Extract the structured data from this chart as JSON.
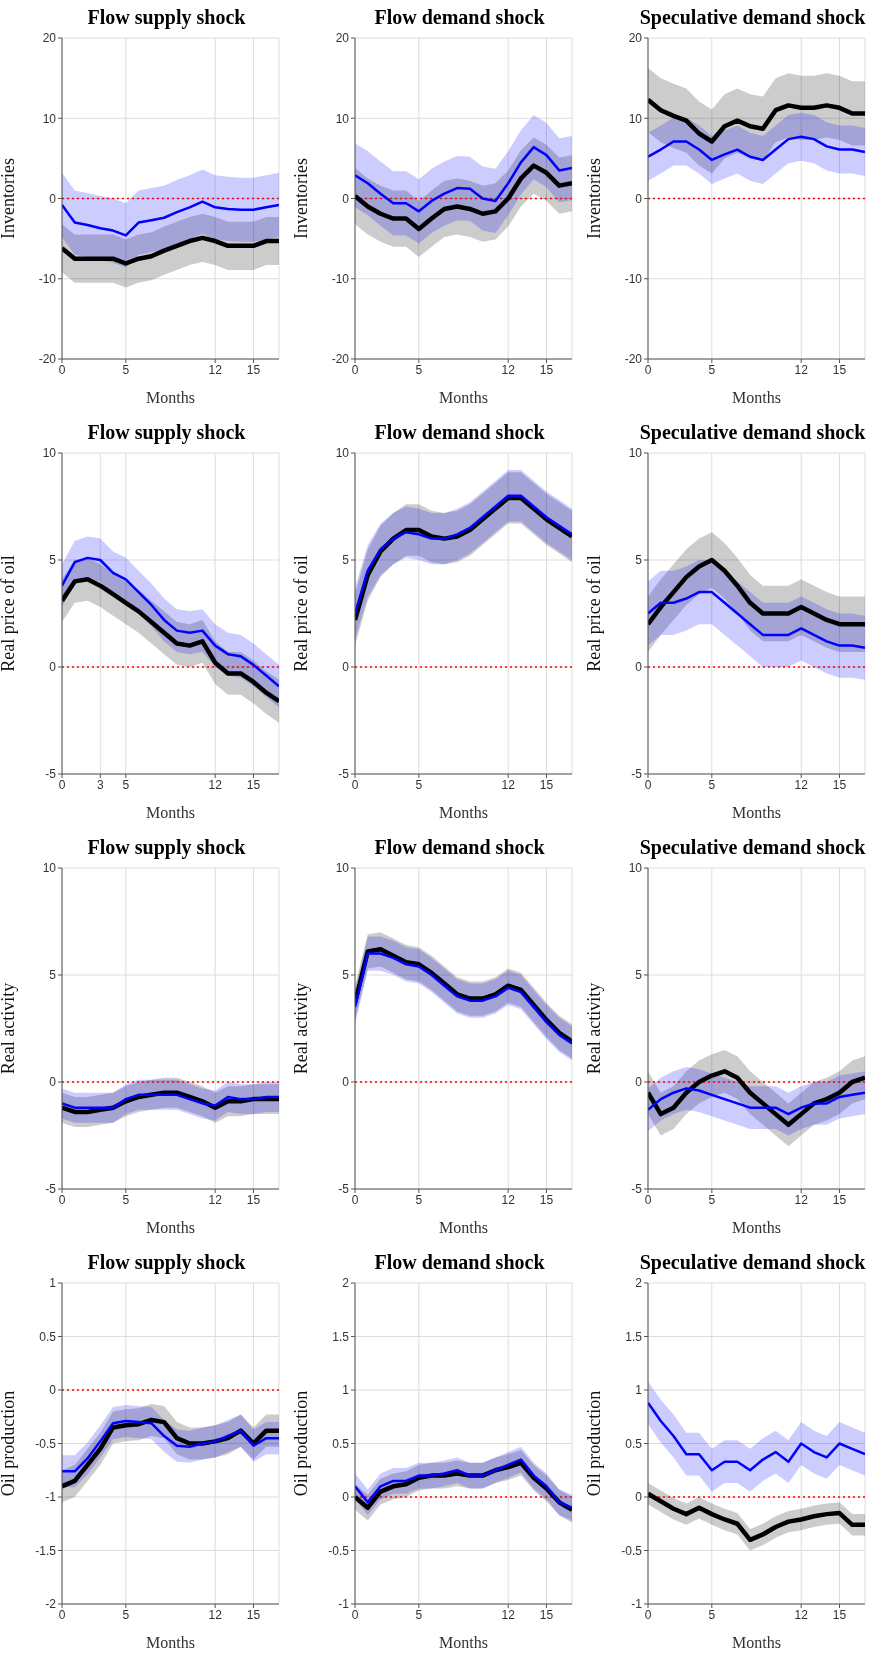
{
  "chart_data": [
    {
      "type": "line",
      "title": "Flow supply shock",
      "xlabel": "Months",
      "ylabel": "Oil production",
      "x": [
        0,
        1,
        2,
        3,
        4,
        5,
        6,
        7,
        8,
        9,
        10,
        11,
        12,
        13,
        14,
        15,
        16,
        17
      ],
      "xlim": [
        0,
        17
      ],
      "xticks": [
        0,
        5,
        12,
        15
      ],
      "ylim": [
        -2,
        1
      ],
      "yticks": [
        -2,
        -1.5,
        -1,
        -0.5,
        0,
        0.5,
        1
      ],
      "grid": true,
      "ref_lines": [
        {
          "axis": "y",
          "value": 0,
          "color": "#ff0000",
          "line_style": "dotted"
        }
      ],
      "series": [
        {
          "color": "#000000",
          "values": [
            -0.9,
            -0.85,
            -0.7,
            -0.55,
            -0.35,
            -0.33,
            -0.32,
            -0.28,
            -0.3,
            -0.45,
            -0.5,
            -0.5,
            -0.48,
            -0.45,
            -0.38,
            -0.5,
            -0.38,
            -0.38
          ],
          "lower": [
            -1.05,
            -1,
            -0.85,
            -0.7,
            -0.5,
            -0.48,
            -0.47,
            -0.43,
            -0.45,
            -0.6,
            -0.65,
            -0.65,
            -0.63,
            -0.6,
            -0.53,
            -0.65,
            -0.53,
            -0.53
          ],
          "upper": [
            -0.75,
            -0.7,
            -0.55,
            -0.4,
            -0.2,
            -0.18,
            -0.17,
            -0.13,
            -0.15,
            -0.3,
            -0.35,
            -0.35,
            -0.33,
            -0.3,
            -0.23,
            -0.35,
            -0.23,
            -0.23
          ]
        },
        {
          "color": "#0000ff",
          "values": [
            -0.76,
            -0.76,
            -0.64,
            -0.48,
            -0.31,
            -0.29,
            -0.3,
            -0.31,
            -0.43,
            -0.52,
            -0.53,
            -0.5,
            -0.48,
            -0.43,
            -0.38,
            -0.52,
            -0.45,
            -0.45
          ],
          "lower": [
            -0.91,
            -0.91,
            -0.79,
            -0.63,
            -0.46,
            -0.44,
            -0.45,
            -0.46,
            -0.58,
            -0.67,
            -0.68,
            -0.65,
            -0.63,
            -0.58,
            -0.53,
            -0.67,
            -0.6,
            -0.6
          ],
          "upper": [
            -0.61,
            -0.61,
            -0.49,
            -0.33,
            -0.16,
            -0.14,
            -0.15,
            -0.16,
            -0.28,
            -0.37,
            -0.38,
            -0.35,
            -0.33,
            -0.28,
            -0.23,
            -0.37,
            -0.3,
            -0.3
          ]
        }
      ]
    },
    {
      "type": "line",
      "title": "Flow supply shock",
      "xlabel": "Months",
      "ylabel": "Real activity",
      "x": [
        0,
        1,
        2,
        3,
        4,
        5,
        6,
        7,
        8,
        9,
        10,
        11,
        12,
        13,
        14,
        15,
        16,
        17
      ],
      "xlim": [
        0,
        17
      ],
      "xticks": [
        0,
        5,
        12,
        15
      ],
      "ylim": [
        -5,
        10
      ],
      "yticks": [
        -5,
        0,
        5,
        10
      ],
      "grid": true,
      "ref_lines": [
        {
          "axis": "y",
          "value": 0,
          "color": "#ff0000",
          "line_style": "dotted"
        }
      ],
      "series": [
        {
          "color": "#000000",
          "values": [
            -1.2,
            -1.4,
            -1.4,
            -1.3,
            -1.2,
            -0.9,
            -0.7,
            -0.6,
            -0.5,
            -0.5,
            -0.7,
            -0.9,
            -1.2,
            -0.9,
            -0.9,
            -0.8,
            -0.8,
            -0.8
          ],
          "lower": [
            -1.9,
            -2.1,
            -2.1,
            -2,
            -1.9,
            -1.6,
            -1.4,
            -1.3,
            -1.2,
            -1.2,
            -1.4,
            -1.6,
            -1.9,
            -1.6,
            -1.6,
            -1.5,
            -1.5,
            -1.5
          ],
          "upper": [
            -0.5,
            -0.7,
            -0.7,
            -0.6,
            -0.5,
            -0.2,
            0,
            0.1,
            0.2,
            0.2,
            0,
            -0.2,
            -0.5,
            -0.2,
            -0.2,
            -0.1,
            -0.1,
            -0.1
          ]
        },
        {
          "color": "#0000ff",
          "values": [
            -1,
            -1.2,
            -1.2,
            -1.2,
            -1.2,
            -0.8,
            -0.6,
            -0.6,
            -0.6,
            -0.6,
            -0.8,
            -1,
            -1.1,
            -0.7,
            -0.8,
            -0.8,
            -0.7,
            -0.7
          ],
          "lower": [
            -1.7,
            -1.9,
            -1.9,
            -1.9,
            -1.9,
            -1.5,
            -1.3,
            -1.3,
            -1.3,
            -1.3,
            -1.5,
            -1.7,
            -1.8,
            -1.4,
            -1.5,
            -1.5,
            -1.4,
            -1.4
          ],
          "upper": [
            -0.3,
            -0.5,
            -0.5,
            -0.5,
            -0.5,
            -0.1,
            0.1,
            0.1,
            0.1,
            0.1,
            -0.1,
            -0.3,
            -0.4,
            0,
            -0.1,
            -0.1,
            0,
            0
          ]
        }
      ]
    },
    {
      "type": "line",
      "title": "Flow supply shock",
      "xlabel": "Months",
      "ylabel": "Real price of oil",
      "x": [
        0,
        1,
        2,
        3,
        4,
        5,
        6,
        7,
        8,
        9,
        10,
        11,
        12,
        13,
        14,
        15,
        16,
        17
      ],
      "xlim": [
        0,
        17
      ],
      "xticks": [
        0,
        3,
        5,
        12,
        15
      ],
      "ylim": [
        -5,
        10
      ],
      "yticks": [
        -5,
        0,
        5,
        10
      ],
      "grid": true,
      "ref_lines": [
        {
          "axis": "y",
          "value": 0,
          "color": "#ff0000",
          "line_style": "dotted"
        }
      ],
      "series": [
        {
          "color": "#000000",
          "values": [
            3.1,
            4,
            4.1,
            3.8,
            3.4,
            3,
            2.6,
            2.1,
            1.6,
            1.1,
            1,
            1.2,
            0.2,
            -0.3,
            -0.3,
            -0.7,
            -1.2,
            -1.6
          ],
          "lower": [
            2.1,
            3,
            3.1,
            2.8,
            2.4,
            2,
            1.6,
            1.1,
            0.6,
            0.1,
            0,
            0.2,
            -0.8,
            -1.3,
            -1.3,
            -1.7,
            -2.2,
            -2.6
          ],
          "upper": [
            4.1,
            5,
            5.1,
            4.8,
            4.4,
            4,
            3.6,
            3.1,
            2.6,
            2.1,
            2,
            2.2,
            1.2,
            0.7,
            0.7,
            0.3,
            -0.2,
            -0.6
          ]
        },
        {
          "color": "#0000ff",
          "values": [
            3.8,
            4.9,
            5.1,
            5,
            4.4,
            4.1,
            3.5,
            2.9,
            2.2,
            1.7,
            1.6,
            1.7,
            1,
            0.6,
            0.5,
            0.1,
            -0.4,
            -0.9
          ],
          "lower": [
            2.8,
            3.9,
            4.1,
            4,
            3.4,
            3.1,
            2.5,
            1.9,
            1.2,
            0.7,
            0.6,
            0.7,
            0,
            -0.4,
            -0.5,
            -0.9,
            -1.4,
            -1.9
          ],
          "upper": [
            4.8,
            5.9,
            6.1,
            6,
            5.4,
            5.1,
            4.5,
            3.9,
            3.2,
            2.7,
            2.6,
            2.7,
            2,
            1.6,
            1.5,
            1.1,
            0.6,
            0.1
          ]
        }
      ]
    },
    {
      "type": "line",
      "title": "Flow supply shock",
      "xlabel": "Months",
      "ylabel": "Inventories",
      "x": [
        0,
        1,
        2,
        3,
        4,
        5,
        6,
        7,
        8,
        9,
        10,
        11,
        12,
        13,
        14,
        15,
        16,
        17
      ],
      "xlim": [
        0,
        17
      ],
      "xticks": [
        0,
        5,
        12,
        15
      ],
      "ylim": [
        -20,
        20
      ],
      "yticks": [
        -20,
        -10,
        0,
        10,
        20
      ],
      "grid": true,
      "ref_lines": [
        {
          "axis": "y",
          "value": 0,
          "color": "#ff0000",
          "line_style": "dotted"
        }
      ],
      "series": [
        {
          "color": "#000000",
          "values": [
            -6.2,
            -7.5,
            -7.5,
            -7.5,
            -7.5,
            -8.1,
            -7.5,
            -7.2,
            -6.5,
            -5.9,
            -5.3,
            -4.9,
            -5.3,
            -5.9,
            -5.9,
            -5.9,
            -5.3,
            -5.3
          ],
          "lower": [
            -9.2,
            -10.5,
            -10.5,
            -10.5,
            -10.5,
            -11.1,
            -10.5,
            -10.2,
            -9.5,
            -8.9,
            -8.3,
            -7.9,
            -8.3,
            -8.9,
            -8.9,
            -8.9,
            -8.3,
            -8.3
          ],
          "upper": [
            -3.2,
            -4.5,
            -4.5,
            -4.5,
            -4.5,
            -5.1,
            -4.5,
            -4.2,
            -3.5,
            -2.9,
            -2.3,
            -1.9,
            -2.3,
            -2.9,
            -2.9,
            -2.9,
            -2.3,
            -2.3
          ]
        },
        {
          "color": "#0000ff",
          "values": [
            -0.8,
            -3,
            -3.3,
            -3.7,
            -4,
            -4.6,
            -3,
            -2.7,
            -2.4,
            -1.7,
            -1.1,
            -0.4,
            -1.1,
            -1.3,
            -1.4,
            -1.4,
            -1.1,
            -0.8
          ],
          "lower": [
            -4.8,
            -7,
            -7.3,
            -7.7,
            -8,
            -8.6,
            -7,
            -6.7,
            -6.4,
            -5.7,
            -5.1,
            -4.4,
            -5.1,
            -5.3,
            -5.4,
            -5.4,
            -5.1,
            -4.8
          ],
          "upper": [
            3.2,
            1,
            0.7,
            0.3,
            0,
            -0.6,
            1,
            1.3,
            1.6,
            2.3,
            2.9,
            3.6,
            2.9,
            2.7,
            2.6,
            2.6,
            2.9,
            3.2
          ]
        }
      ]
    },
    {
      "type": "line",
      "title": "Flow demand shock",
      "xlabel": "Months",
      "ylabel": "Oil production",
      "x": [
        0,
        1,
        2,
        3,
        4,
        5,
        6,
        7,
        8,
        9,
        10,
        11,
        12,
        13,
        14,
        15,
        16,
        17
      ],
      "xlim": [
        0,
        17
      ],
      "xticks": [
        0,
        5,
        12,
        15
      ],
      "ylim": [
        -1,
        2
      ],
      "yticks": [
        -1,
        -0.5,
        0,
        0.5,
        1,
        1.5,
        2
      ],
      "grid": true,
      "ref_lines": [
        {
          "axis": "y",
          "value": 0,
          "color": "#ff0000",
          "line_style": "dotted"
        }
      ],
      "series": [
        {
          "color": "#000000",
          "values": [
            0,
            -0.1,
            0.05,
            0.1,
            0.12,
            0.18,
            0.2,
            0.2,
            0.22,
            0.2,
            0.2,
            0.25,
            0.28,
            0.32,
            0.18,
            0.08,
            -0.05,
            -0.12
          ],
          "lower": [
            -0.12,
            -0.22,
            -0.07,
            -0.02,
            0,
            0.06,
            0.08,
            0.08,
            0.1,
            0.08,
            0.08,
            0.13,
            0.16,
            0.2,
            0.06,
            -0.04,
            -0.17,
            -0.24
          ],
          "upper": [
            0.12,
            0.02,
            0.17,
            0.22,
            0.24,
            0.3,
            0.32,
            0.32,
            0.34,
            0.32,
            0.32,
            0.37,
            0.4,
            0.44,
            0.3,
            0.2,
            0.07,
            0
          ]
        },
        {
          "color": "#0000ff",
          "values": [
            0.1,
            -0.05,
            0.1,
            0.15,
            0.15,
            0.2,
            0.2,
            0.22,
            0.25,
            0.2,
            0.2,
            0.25,
            0.3,
            0.35,
            0.2,
            0.1,
            -0.05,
            -0.1
          ],
          "lower": [
            -0.02,
            -0.17,
            -0.02,
            0.03,
            0.03,
            0.08,
            0.08,
            0.1,
            0.13,
            0.08,
            0.08,
            0.13,
            0.18,
            0.23,
            0.08,
            -0.02,
            -0.17,
            -0.22
          ],
          "upper": [
            0.22,
            0.07,
            0.22,
            0.27,
            0.27,
            0.32,
            0.32,
            0.34,
            0.37,
            0.32,
            0.32,
            0.37,
            0.42,
            0.47,
            0.32,
            0.22,
            0.07,
            0.02
          ]
        }
      ]
    },
    {
      "type": "line",
      "title": "Flow demand shock",
      "xlabel": "Months",
      "ylabel": "Real activity",
      "x": [
        0,
        1,
        2,
        3,
        4,
        5,
        6,
        7,
        8,
        9,
        10,
        11,
        12,
        13,
        14,
        15,
        16,
        17
      ],
      "xlim": [
        0,
        17
      ],
      "xticks": [
        0,
        5,
        12,
        15
      ],
      "ylim": [
        -5,
        10
      ],
      "yticks": [
        -5,
        0,
        5,
        10
      ],
      "grid": true,
      "ref_lines": [
        {
          "axis": "y",
          "value": 0,
          "color": "#ff0000",
          "line_style": "dotted"
        }
      ],
      "series": [
        {
          "color": "#000000",
          "values": [
            3.7,
            6.1,
            6.2,
            5.9,
            5.6,
            5.5,
            5.1,
            4.6,
            4.1,
            3.9,
            3.9,
            4.1,
            4.5,
            4.3,
            3.6,
            2.9,
            2.3,
            1.9
          ],
          "lower": [
            2.9,
            5.3,
            5.4,
            5.1,
            4.8,
            4.7,
            4.3,
            3.8,
            3.3,
            3.1,
            3.1,
            3.3,
            3.7,
            3.5,
            2.8,
            2.1,
            1.5,
            1.1
          ],
          "upper": [
            4.5,
            6.9,
            7,
            6.7,
            6.4,
            6.3,
            5.9,
            5.4,
            4.9,
            4.7,
            4.7,
            4.9,
            5.3,
            5.1,
            4.4,
            3.7,
            3.1,
            2.7
          ]
        },
        {
          "color": "#0000ff",
          "values": [
            3.5,
            6,
            6,
            5.8,
            5.5,
            5.4,
            5,
            4.5,
            4,
            3.8,
            3.8,
            4,
            4.4,
            4.2,
            3.5,
            2.8,
            2.2,
            1.8
          ],
          "lower": [
            2.7,
            5.2,
            5.2,
            5,
            4.7,
            4.6,
            4.2,
            3.7,
            3.2,
            3,
            3,
            3.2,
            3.6,
            3.4,
            2.7,
            2,
            1.4,
            1
          ],
          "upper": [
            4.3,
            6.8,
            6.8,
            6.6,
            6.3,
            6.2,
            5.8,
            5.3,
            4.8,
            4.6,
            4.6,
            4.8,
            5.2,
            5,
            4.3,
            3.6,
            3,
            2.6
          ]
        }
      ]
    },
    {
      "type": "line",
      "title": "Flow demand shock",
      "xlabel": "Months",
      "ylabel": "Real price of oil",
      "x": [
        0,
        1,
        2,
        3,
        4,
        5,
        6,
        7,
        8,
        9,
        10,
        11,
        12,
        13,
        14,
        15,
        16,
        17
      ],
      "xlim": [
        0,
        17
      ],
      "xticks": [
        0,
        5,
        12,
        15
      ],
      "ylim": [
        -5,
        10
      ],
      "yticks": [
        -5,
        0,
        5,
        10
      ],
      "grid": true,
      "ref_lines": [
        {
          "axis": "y",
          "value": 0,
          "color": "#ff0000",
          "line_style": "dotted"
        }
      ],
      "series": [
        {
          "color": "#000000",
          "values": [
            2.2,
            4.3,
            5.4,
            6,
            6.4,
            6.4,
            6.1,
            6,
            6.1,
            6.4,
            6.9,
            7.4,
            7.9,
            7.9,
            7.4,
            6.9,
            6.5,
            6.1
          ],
          "lower": [
            1,
            3.1,
            4.2,
            4.8,
            5.2,
            5.2,
            4.9,
            4.8,
            4.9,
            5.2,
            5.7,
            6.2,
            6.7,
            6.7,
            6.2,
            5.7,
            5.3,
            4.9
          ],
          "upper": [
            3.4,
            5.5,
            6.6,
            7.2,
            7.6,
            7.6,
            7.3,
            7.2,
            7.3,
            7.6,
            8.1,
            8.6,
            9.1,
            9.1,
            8.6,
            8.1,
            7.7,
            7.3
          ]
        },
        {
          "color": "#0000ff",
          "values": [
            2.5,
            4.5,
            5.5,
            6,
            6.3,
            6.2,
            6,
            6,
            6.2,
            6.5,
            7,
            7.5,
            8,
            8,
            7.5,
            7,
            6.6,
            6.2
          ],
          "lower": [
            1.3,
            3.3,
            4.3,
            4.8,
            5.1,
            5,
            4.8,
            4.8,
            5,
            5.3,
            5.8,
            6.3,
            6.8,
            6.8,
            6.3,
            5.8,
            5.4,
            5
          ],
          "upper": [
            3.7,
            5.7,
            6.7,
            7.2,
            7.5,
            7.4,
            7.2,
            7.2,
            7.4,
            7.7,
            8.2,
            8.7,
            9.2,
            9.2,
            8.7,
            8.2,
            7.8,
            7.4
          ]
        }
      ]
    },
    {
      "type": "line",
      "title": "Flow demand shock",
      "xlabel": "Months",
      "ylabel": "Inventories",
      "x": [
        0,
        1,
        2,
        3,
        4,
        5,
        6,
        7,
        8,
        9,
        10,
        11,
        12,
        13,
        14,
        15,
        16,
        17
      ],
      "xlim": [
        0,
        17
      ],
      "xticks": [
        0,
        5,
        12,
        15
      ],
      "ylim": [
        -20,
        20
      ],
      "yticks": [
        -20,
        -10,
        0,
        10,
        20
      ],
      "grid": true,
      "ref_lines": [
        {
          "axis": "y",
          "value": 0,
          "color": "#ff0000",
          "line_style": "dotted"
        }
      ],
      "series": [
        {
          "color": "#000000",
          "values": [
            0.3,
            -1,
            -1.9,
            -2.5,
            -2.5,
            -3.8,
            -2.5,
            -1.3,
            -1,
            -1.3,
            -1.9,
            -1.6,
            0,
            2.5,
            4.1,
            3.2,
            1.6,
            1.9
          ],
          "lower": [
            -3.2,
            -4.5,
            -5.4,
            -6,
            -6,
            -7.3,
            -6,
            -4.8,
            -4.5,
            -4.8,
            -5.4,
            -5.1,
            -3.5,
            -1,
            0.6,
            -0.3,
            -1.9,
            -1.6
          ],
          "upper": [
            3.8,
            2.5,
            1.6,
            1,
            1,
            -0.3,
            1,
            2.2,
            2.5,
            2.2,
            1.6,
            1.9,
            3.5,
            6,
            7.6,
            6.7,
            5.1,
            5.4
          ]
        },
        {
          "color": "#0000ff",
          "values": [
            2.9,
            1.9,
            0.6,
            -0.6,
            -0.6,
            -1.6,
            -0.3,
            0.6,
            1.3,
            1.2,
            0,
            -0.3,
            1.9,
            4.5,
            6.4,
            5.4,
            3.5,
            3.8
          ],
          "lower": [
            -1.1,
            -2.1,
            -3.4,
            -4.6,
            -4.6,
            -5.6,
            -4.3,
            -3.4,
            -2.7,
            -2.8,
            -4,
            -4.3,
            -2.1,
            0.5,
            2.4,
            1.4,
            -0.5,
            -0.2
          ],
          "upper": [
            6.9,
            5.9,
            4.6,
            3.4,
            3.4,
            2.4,
            3.7,
            4.6,
            5.3,
            5.2,
            4,
            3.7,
            5.9,
            8.5,
            10.4,
            9.4,
            7.5,
            7.8
          ]
        }
      ]
    },
    {
      "type": "line",
      "title": "Speculative demand shock",
      "xlabel": "Months",
      "ylabel": "Oil production",
      "x": [
        0,
        1,
        2,
        3,
        4,
        5,
        6,
        7,
        8,
        9,
        10,
        11,
        12,
        13,
        14,
        15,
        16,
        17
      ],
      "xlim": [
        0,
        17
      ],
      "xticks": [
        0,
        5,
        12,
        15
      ],
      "ylim": [
        -1,
        2
      ],
      "yticks": [
        -1,
        -0.5,
        0,
        0.5,
        1,
        1.5,
        2
      ],
      "grid": true,
      "ref_lines": [
        {
          "axis": "y",
          "value": 0,
          "color": "#ff0000",
          "line_style": "dotted"
        }
      ],
      "series": [
        {
          "color": "#000000",
          "values": [
            0.03,
            -0.04,
            -0.11,
            -0.16,
            -0.1,
            -0.16,
            -0.21,
            -0.25,
            -0.4,
            -0.35,
            -0.28,
            -0.23,
            -0.21,
            -0.18,
            -0.16,
            -0.15,
            -0.26,
            -0.26
          ],
          "lower": [
            -0.07,
            -0.14,
            -0.21,
            -0.26,
            -0.2,
            -0.26,
            -0.31,
            -0.35,
            -0.5,
            -0.45,
            -0.38,
            -0.33,
            -0.31,
            -0.28,
            -0.26,
            -0.25,
            -0.36,
            -0.36
          ],
          "upper": [
            0.13,
            0.06,
            -0.01,
            -0.06,
            0,
            -0.06,
            -0.11,
            -0.15,
            -0.3,
            -0.25,
            -0.18,
            -0.13,
            -0.11,
            -0.08,
            -0.06,
            -0.05,
            -0.16,
            -0.16
          ]
        },
        {
          "color": "#0000ff",
          "values": [
            0.88,
            0.71,
            0.57,
            0.4,
            0.4,
            0.25,
            0.33,
            0.33,
            0.25,
            0.35,
            0.42,
            0.33,
            0.5,
            0.42,
            0.37,
            0.5,
            0.45,
            0.4
          ],
          "lower": [
            0.68,
            0.51,
            0.37,
            0.2,
            0.2,
            0.05,
            0.13,
            0.13,
            0.05,
            0.15,
            0.22,
            0.13,
            0.3,
            0.22,
            0.17,
            0.3,
            0.25,
            0.2
          ],
          "upper": [
            1.08,
            0.91,
            0.77,
            0.6,
            0.6,
            0.45,
            0.53,
            0.53,
            0.45,
            0.55,
            0.62,
            0.53,
            0.7,
            0.62,
            0.57,
            0.7,
            0.65,
            0.6
          ]
        }
      ]
    },
    {
      "type": "line",
      "title": "Speculative demand shock",
      "xlabel": "Months",
      "ylabel": "Real activity",
      "x": [
        0,
        1,
        2,
        3,
        4,
        5,
        6,
        7,
        8,
        9,
        10,
        11,
        12,
        13,
        14,
        15,
        16,
        17
      ],
      "xlim": [
        0,
        17
      ],
      "xticks": [
        0,
        5,
        12,
        15
      ],
      "ylim": [
        -5,
        10
      ],
      "yticks": [
        -5,
        0,
        5,
        10
      ],
      "grid": true,
      "ref_lines": [
        {
          "axis": "y",
          "value": 0,
          "color": "#ff0000",
          "line_style": "dotted"
        }
      ],
      "series": [
        {
          "color": "#000000",
          "values": [
            -0.5,
            -1.5,
            -1.2,
            -0.5,
            0,
            0.3,
            0.5,
            0.2,
            -0.5,
            -1,
            -1.5,
            -2,
            -1.5,
            -1,
            -0.8,
            -0.5,
            0,
            0.2
          ],
          "lower": [
            -1.5,
            -2.5,
            -2.2,
            -1.5,
            -1,
            -0.7,
            -0.5,
            -0.8,
            -1.5,
            -2,
            -2.5,
            -3,
            -2.5,
            -2,
            -1.8,
            -1.5,
            -1,
            -0.8
          ],
          "upper": [
            0.5,
            -0.5,
            -0.2,
            0.5,
            1,
            1.3,
            1.5,
            1.2,
            0.5,
            0,
            -0.5,
            -1,
            -0.5,
            0,
            0.2,
            0.5,
            1,
            1.2
          ]
        },
        {
          "color": "#0000ff",
          "values": [
            -1.3,
            -0.8,
            -0.5,
            -0.3,
            -0.4,
            -0.6,
            -0.8,
            -1,
            -1.2,
            -1.2,
            -1.2,
            -1.5,
            -1.2,
            -1,
            -1,
            -0.7,
            -0.6,
            -0.5
          ],
          "lower": [
            -2.3,
            -1.8,
            -1.5,
            -1.3,
            -1.4,
            -1.6,
            -1.8,
            -2,
            -2.2,
            -2.2,
            -2.2,
            -2.5,
            -2.2,
            -2,
            -2,
            -1.7,
            -1.6,
            -1.5
          ],
          "upper": [
            -0.3,
            0.2,
            0.5,
            0.7,
            0.6,
            0.4,
            0.2,
            0,
            -0.2,
            -0.2,
            -0.2,
            -0.5,
            -0.2,
            0,
            0,
            0.3,
            0.4,
            0.5
          ]
        }
      ]
    },
    {
      "type": "line",
      "title": "Speculative demand shock",
      "xlabel": "Months",
      "ylabel": "Real price of oil",
      "x": [
        0,
        1,
        2,
        3,
        4,
        5,
        6,
        7,
        8,
        9,
        10,
        11,
        12,
        13,
        14,
        15,
        16,
        17
      ],
      "xlim": [
        0,
        17
      ],
      "xticks": [
        0,
        5,
        12,
        15
      ],
      "ylim": [
        -5,
        10
      ],
      "yticks": [
        -5,
        0,
        5,
        10
      ],
      "grid": true,
      "ref_lines": [
        {
          "axis": "y",
          "value": 0,
          "color": "#ff0000",
          "line_style": "dotted"
        }
      ],
      "series": [
        {
          "color": "#000000",
          "values": [
            2,
            2.8,
            3.5,
            4.2,
            4.7,
            5,
            4.5,
            3.8,
            3,
            2.5,
            2.5,
            2.5,
            2.8,
            2.5,
            2.2,
            2,
            2,
            2
          ],
          "lower": [
            0.7,
            1.5,
            2.2,
            2.9,
            3.4,
            3.7,
            3.2,
            2.5,
            1.7,
            1.2,
            1.2,
            1.2,
            1.5,
            1.2,
            0.9,
            0.7,
            0.7,
            0.7
          ],
          "upper": [
            3.3,
            4.1,
            4.8,
            5.5,
            6,
            6.3,
            5.8,
            5.1,
            4.3,
            3.8,
            3.8,
            3.8,
            4.1,
            3.8,
            3.5,
            3.3,
            3.3,
            3.3
          ]
        },
        {
          "color": "#0000ff",
          "values": [
            2.5,
            3,
            3,
            3.2,
            3.5,
            3.5,
            3,
            2.5,
            2,
            1.5,
            1.5,
            1.5,
            1.8,
            1.5,
            1.2,
            1,
            1,
            0.9
          ],
          "lower": [
            1,
            1.5,
            1.5,
            1.7,
            2,
            2,
            1.5,
            1,
            0.5,
            0,
            0,
            0,
            0.3,
            0,
            -0.3,
            -0.5,
            -0.5,
            -0.6
          ],
          "upper": [
            4,
            4.5,
            4.5,
            4.7,
            5,
            5,
            4.5,
            4,
            3.5,
            3,
            3,
            3,
            3.3,
            3,
            2.7,
            2.5,
            2.5,
            2.4
          ]
        }
      ]
    },
    {
      "type": "line",
      "title": "Speculative demand shock",
      "xlabel": "Months",
      "ylabel": "Inventories",
      "x": [
        0,
        1,
        2,
        3,
        4,
        5,
        6,
        7,
        8,
        9,
        10,
        11,
        12,
        13,
        14,
        15,
        16,
        17
      ],
      "xlim": [
        0,
        17
      ],
      "xticks": [
        0,
        5,
        12,
        15
      ],
      "ylim": [
        -20,
        20
      ],
      "yticks": [
        -20,
        -10,
        0,
        10,
        20
      ],
      "grid": true,
      "ref_lines": [
        {
          "axis": "y",
          "value": 0,
          "color": "#ff0000",
          "line_style": "dotted"
        }
      ],
      "series": [
        {
          "color": "#000000",
          "values": [
            12.3,
            11,
            10.3,
            9.7,
            8.1,
            7.1,
            9,
            9.7,
            9,
            8.7,
            11,
            11.6,
            11.3,
            11.3,
            11.6,
            11.3,
            10.6,
            10.6
          ],
          "lower": [
            8.3,
            7,
            6.3,
            5.7,
            4.1,
            3.1,
            5,
            5.7,
            5,
            4.7,
            7,
            7.6,
            7.3,
            7.3,
            7.6,
            7.3,
            6.6,
            6.6
          ],
          "upper": [
            16.3,
            15,
            14.3,
            13.7,
            12.1,
            11.1,
            13,
            13.7,
            13,
            12.7,
            15,
            15.6,
            15.3,
            15.3,
            15.6,
            15.3,
            14.6,
            14.6
          ]
        },
        {
          "color": "#0000ff",
          "values": [
            5.2,
            6.1,
            7.1,
            7.1,
            6.1,
            4.8,
            5.5,
            6.1,
            5.2,
            4.8,
            6.1,
            7.4,
            7.7,
            7.4,
            6.5,
            6.1,
            6.1,
            5.8
          ],
          "lower": [
            2.2,
            3.1,
            4.1,
            4.1,
            3.1,
            1.8,
            2.5,
            3.1,
            2.2,
            1.8,
            3.1,
            4.4,
            4.7,
            4.4,
            3.5,
            3.1,
            3.1,
            2.8
          ],
          "upper": [
            8.2,
            9.1,
            10.1,
            10.1,
            9.1,
            7.8,
            8.5,
            9.1,
            8.2,
            7.8,
            9.1,
            10.4,
            10.7,
            10.4,
            9.5,
            9.1,
            9.1,
            8.8
          ]
        }
      ]
    }
  ]
}
